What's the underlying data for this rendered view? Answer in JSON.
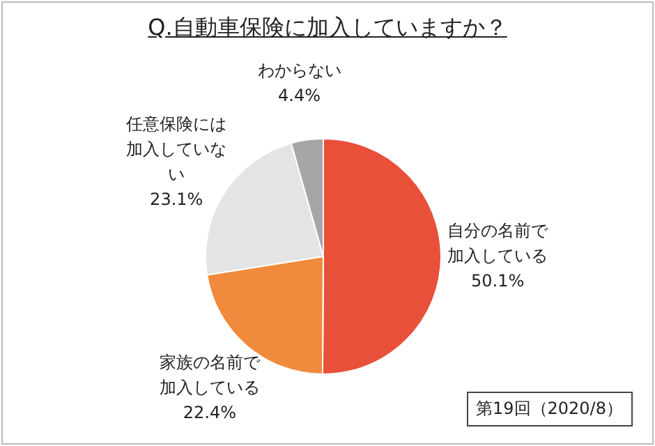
{
  "chart_data": {
    "type": "pie",
    "title": "Q.自動車保険に加入していますか？",
    "categories": [
      "自分の名前で加入している",
      "家族の名前で加入している",
      "任意保険には加入していない",
      "わからない"
    ],
    "values": [
      50.1,
      22.4,
      23.1,
      4.4
    ],
    "value_labels": [
      "50.1%",
      "22.4%",
      "23.1%",
      "4.4%"
    ],
    "colors": [
      "#e8503a",
      "#f08a3c",
      "#e4e4e4",
      "#a6a6a6"
    ],
    "annotations": [
      "第19回（2020/8）"
    ]
  }
}
